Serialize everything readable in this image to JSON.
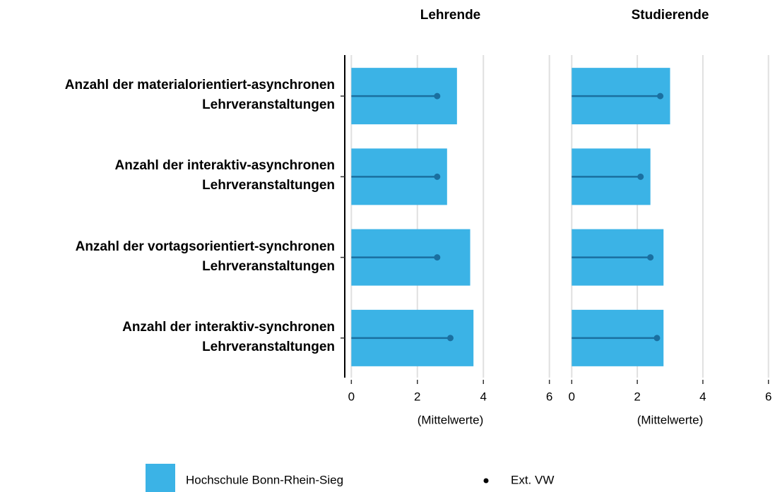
{
  "chart_data": [
    {
      "type": "bar",
      "orientation": "horizontal",
      "title": "Lehrende",
      "categories": [
        "Anzahl der materialorientiert-asynchronen\nLehrveranstaltungen",
        "Anzahl der interaktiv-asynchronen\nLehrveranstaltungen",
        "Anzahl der vortagsorientiert-synchronen\nLehrveranstaltungen",
        "Anzahl der interaktiv-synchronen\nLehrveranstaltungen"
      ],
      "series": [
        {
          "name": "Hochschule Bonn-Rhein-Sieg",
          "type": "bar",
          "color": "#3bb3e6",
          "values": [
            3.2,
            2.9,
            3.6,
            3.7
          ]
        },
        {
          "name": "Ext. VW",
          "type": "dot",
          "color": "#1a6fa0",
          "values": [
            2.6,
            2.6,
            2.6,
            3.0
          ]
        }
      ],
      "xlabel": "(Mittelwerte)",
      "xlim": [
        -0.2,
        6.2
      ],
      "xticks": [
        0,
        2,
        4,
        6
      ],
      "grid": true
    },
    {
      "type": "bar",
      "orientation": "horizontal",
      "title": "Studierende",
      "series": [
        {
          "type": "bar",
          "color": "#3bb3e6",
          "values": [
            3.0,
            2.4,
            2.8,
            2.8
          ]
        },
        {
          "type": "dot",
          "color": "#1a6fa0",
          "values": [
            2.7,
            2.1,
            2.4,
            2.6
          ]
        }
      ],
      "xlabel": "(Mittelwerte)",
      "xlim": [
        -0.2,
        6.2
      ],
      "xticks": [
        0,
        2,
        4,
        6
      ],
      "grid": true
    }
  ]
}
